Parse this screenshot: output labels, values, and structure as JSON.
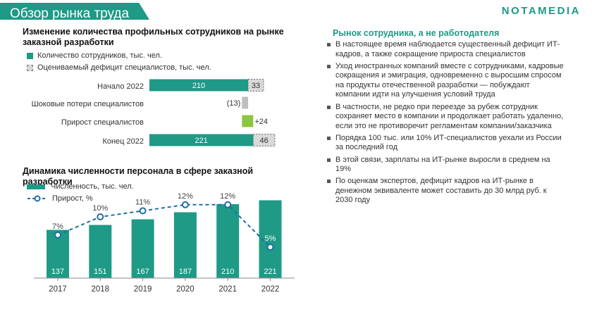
{
  "header": {
    "title": "Обзор рынка труда",
    "brand": "NOTAMEDIA"
  },
  "chart_data": [
    {
      "type": "waterfall",
      "title": "Изменение количества профильных сотрудников на рынке заказной разработки",
      "legend": [
        "Количество сотрудников, тыс. чел.",
        "Оцениваемый дефицит специалистов, тыс. чел."
      ],
      "rows": [
        {
          "label": "Начало 2022",
          "employees": 210,
          "deficit": 33
        },
        {
          "label": "Шоковые потери специалистов",
          "change": -13,
          "change_label": "(13)"
        },
        {
          "label": "Прирост специалистов",
          "change": 24,
          "change_label": "+24"
        },
        {
          "label": "Конец 2022",
          "employees": 221,
          "deficit": 46
        }
      ],
      "colors": {
        "employees": "#1e9a87",
        "loss": "#bfbfbf",
        "gain": "#8cc63f",
        "deficit": "#d9d9d9"
      }
    },
    {
      "type": "bar+line",
      "title": "Динамика численности персонала в сфере заказной разработки",
      "legend": [
        "Численность, тыс. чел.",
        "Прирост, %"
      ],
      "categories": [
        "2017",
        "2018",
        "2019",
        "2020",
        "2021",
        "2022"
      ],
      "series": [
        {
          "name": "Численность, тыс. чел.",
          "values": [
            137,
            151,
            167,
            187,
            210,
            221
          ]
        },
        {
          "name": "Прирост, %",
          "values": [
            7,
            10,
            11,
            12,
            12,
            5
          ],
          "labels": [
            "7%",
            "10%",
            "11%",
            "12%",
            "12%",
            "5%"
          ]
        }
      ],
      "colors": {
        "bar": "#1e9a87",
        "line": "#1e6fa3"
      }
    }
  ],
  "market": {
    "title": "Рынок сотрудника, а не работодателя",
    "bullets": [
      "В настоящее время наблюдается существенный дефицит ИТ-кадров, а также сокращение прироста специалистов",
      "Уход иностранных компаний вместе с сотрудниками, кадровые сокращения и эмиграция, одновременно с выросшим спросом на продукты отечественной разработки — побуждают компании идти на улучшения условий труда",
      "В частности, не редко при переезде за рубеж сотрудник сохраняет место в компании и продолжает работать удаленно, если это не противоречит регламентам компании/заказчика",
      "Порядка 100 тыс. или 10% ИТ-специалистов уехали из России за последний год",
      "В этой связи, зарплаты на ИТ-рынке выросли в среднем на 19%",
      "По оценкам экспертов, дефицит кадров на ИТ-рынке в денежном эквиваленте может составить до 30 млрд руб. к 2030 году"
    ]
  }
}
